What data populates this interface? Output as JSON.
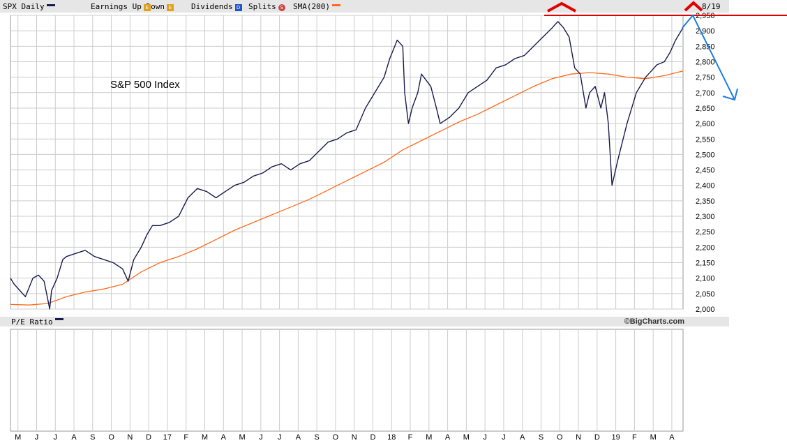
{
  "legend": {
    "symbol": "SPX Daily",
    "earnings": "Earnings",
    "up": "Up",
    "down": "Down",
    "dividends": "Dividends",
    "splits": "Splits",
    "sma": "SMA(200)",
    "date_fragment": "8/19"
  },
  "pe_panel": {
    "label": "P/E Ratio",
    "credit": "©BigCharts.com"
  },
  "colors": {
    "price": "#1a1a4e",
    "sma": "#ff6a1a",
    "annotation_red": "#e00000",
    "annotation_blue": "#1e7be0",
    "grid": "#cccccc",
    "panel": "#e6e6e6"
  },
  "chart_data": {
    "type": "line",
    "title": "S&P 500 Index",
    "y_ticks": [
      "2,000",
      "2,050",
      "2,100",
      "2,150",
      "2,200",
      "2,250",
      "2,300",
      "2,350",
      "2,400",
      "2,450",
      "2,500",
      "2,550",
      "2,600",
      "2,650",
      "2,700",
      "2,750",
      "2,800",
      "2,850",
      "2,900",
      "2,950"
    ],
    "ylim": [
      2000,
      2950
    ],
    "x_ticks": [
      "M",
      "J",
      "J",
      "A",
      "S",
      "O",
      "N",
      "D",
      "17",
      "F",
      "M",
      "A",
      "M",
      "J",
      "J",
      "A",
      "S",
      "O",
      "N",
      "D",
      "18",
      "F",
      "M",
      "A",
      "M",
      "J",
      "J",
      "A",
      "S",
      "O",
      "N",
      "D",
      "19",
      "F",
      "M",
      "A"
    ],
    "xlim": [
      0,
      36
    ],
    "series": [
      {
        "x": [
          0,
          0.2,
          0.5,
          0.8,
          1.0,
          1.2,
          1.5,
          1.8,
          2.0,
          2.1,
          2.2,
          2.5,
          2.8,
          3.0,
          3.5,
          4.0,
          4.5,
          5.0,
          5.5,
          6.0,
          6.3,
          6.6,
          7.0,
          7.3,
          7.6,
          8.0,
          8.5,
          9.0,
          9.5,
          10.0,
          10.5,
          11.0,
          11.5,
          12.0,
          12.5,
          13.0,
          13.5,
          14.0,
          14.5,
          15.0,
          15.5,
          16.0,
          16.5,
          17.0,
          17.5,
          18.0,
          18.5,
          19.0,
          19.5,
          20.0,
          20.3,
          20.7,
          21.0,
          21.1,
          21.3,
          21.5,
          21.8,
          22.0,
          22.5,
          22.8,
          23.0,
          23.5,
          24.0,
          24.5,
          25.0,
          25.5,
          26.0,
          26.5,
          27.0,
          27.5,
          28.0,
          28.5,
          29.0,
          29.3,
          29.6,
          29.9,
          30.2,
          30.5,
          30.8,
          31.0,
          31.3,
          31.6,
          31.8,
          32.0,
          32.2,
          32.5,
          33.0,
          33.5,
          34.0,
          34.3,
          34.6,
          35.0,
          35.3,
          35.6,
          36.0
        ],
        "values": [
          2100,
          2080,
          2060,
          2040,
          2070,
          2100,
          2110,
          2090,
          2030,
          2000,
          2060,
          2100,
          2160,
          2170,
          2180,
          2190,
          2170,
          2160,
          2150,
          2130,
          2090,
          2160,
          2200,
          2240,
          2270,
          2270,
          2280,
          2300,
          2360,
          2390,
          2380,
          2360,
          2380,
          2400,
          2410,
          2430,
          2440,
          2460,
          2470,
          2450,
          2470,
          2480,
          2510,
          2540,
          2550,
          2570,
          2580,
          2650,
          2700,
          2750,
          2810,
          2870,
          2850,
          2700,
          2600,
          2650,
          2700,
          2760,
          2720,
          2650,
          2600,
          2620,
          2650,
          2700,
          2720,
          2740,
          2780,
          2790,
          2810,
          2820,
          2850,
          2880,
          2910,
          2930,
          2910,
          2880,
          2780,
          2760,
          2650,
          2700,
          2720,
          2650,
          2700,
          2600,
          2400,
          2480,
          2600,
          2700,
          2750,
          2770,
          2790,
          2800,
          2830,
          2870,
          2910
        ]
      },
      {
        "x": [
          0,
          1,
          2,
          3,
          4,
          5,
          6,
          7,
          8,
          9,
          10,
          11,
          12,
          13,
          14,
          15,
          16,
          17,
          18,
          19,
          20,
          21,
          22,
          23,
          24,
          25,
          26,
          27,
          28,
          29,
          30,
          31,
          32,
          33,
          34,
          35,
          36
        ],
        "values": [
          2015,
          2013,
          2018,
          2040,
          2055,
          2065,
          2080,
          2120,
          2150,
          2170,
          2195,
          2225,
          2255,
          2280,
          2305,
          2330,
          2355,
          2385,
          2415,
          2445,
          2475,
          2515,
          2545,
          2575,
          2605,
          2630,
          2660,
          2690,
          2720,
          2745,
          2760,
          2765,
          2760,
          2750,
          2745,
          2755,
          2770
        ]
      }
    ],
    "annotations": [
      "red horizontal line at the 2,950 level with two red caret (^) markers above the peaks",
      "blue arrow from the current price down towards about 2,650"
    ],
    "grid": true,
    "legend_position": "top"
  }
}
